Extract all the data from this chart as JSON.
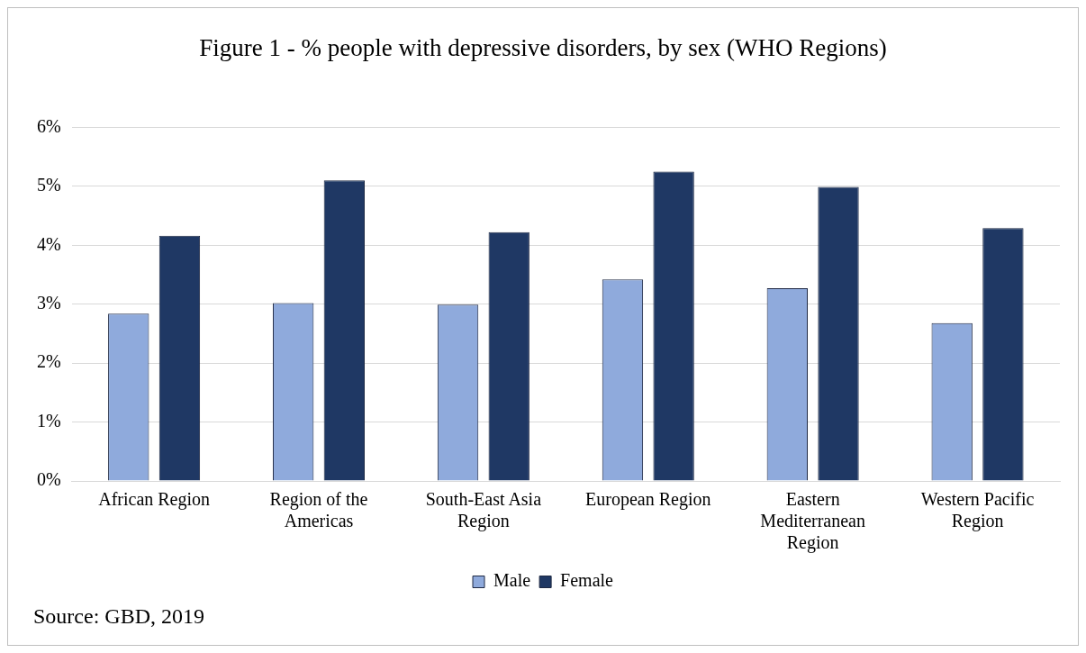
{
  "chart_data": {
    "type": "bar",
    "title": "Figure 1 - % people with depressive disorders, by sex (WHO Regions)",
    "categories": [
      "African Region",
      "Region of the Americas",
      "South-East Asia Region",
      "European Region",
      "Eastern Mediterranean Region",
      "Western Pacific Region"
    ],
    "series": [
      {
        "name": "Male",
        "color": "#8faadc",
        "values": [
          2.84,
          3.02,
          2.99,
          3.42,
          3.27,
          2.68
        ]
      },
      {
        "name": "Female",
        "color": "#1f3864",
        "values": [
          4.16,
          5.1,
          4.22,
          5.25,
          4.99,
          4.29
        ]
      }
    ],
    "ylim": [
      0,
      6
    ],
    "yticks": [
      {
        "value": 0,
        "label": "0%"
      },
      {
        "value": 1,
        "label": "1%"
      },
      {
        "value": 2,
        "label": "2%"
      },
      {
        "value": 3,
        "label": "3%"
      },
      {
        "value": 4,
        "label": "4%"
      },
      {
        "value": 5,
        "label": "5%"
      },
      {
        "value": 6,
        "label": "6%"
      }
    ],
    "grid": "y",
    "legend": "bottom",
    "annotations": [
      "Source: GBD, 2019"
    ]
  }
}
